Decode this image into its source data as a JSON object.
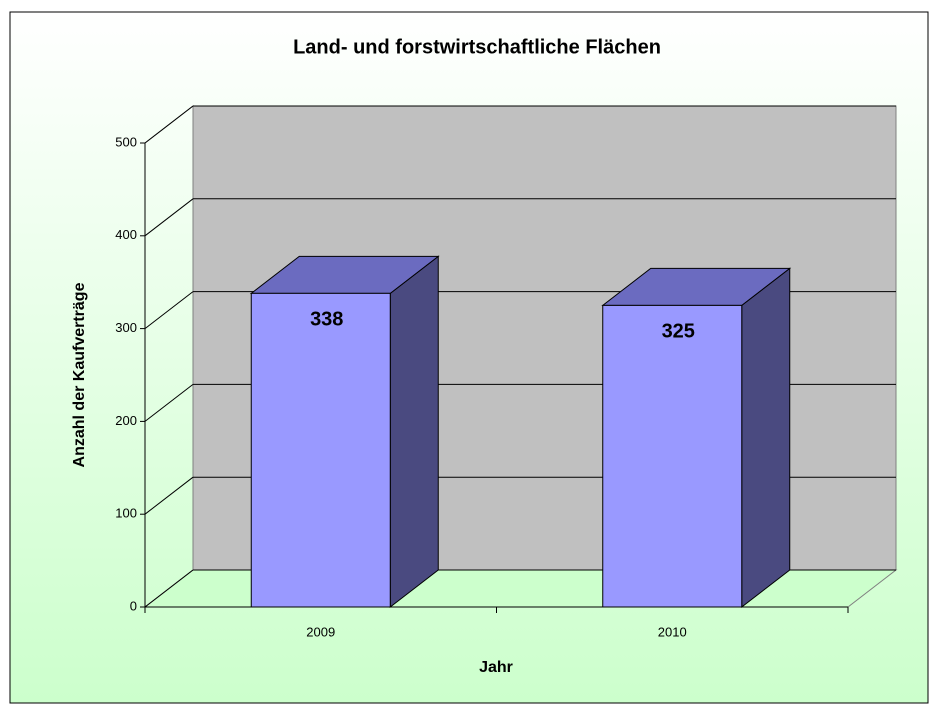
{
  "chart_data": {
    "type": "bar3d",
    "title": "Land- und forstwirtschaftliche Flächen",
    "categories": [
      "2009",
      "2010"
    ],
    "values": [
      338,
      325
    ],
    "color": "#9999ff",
    "xlabel": "Jahr",
    "ylabel": "Anzahl der Kaufverträge",
    "ylim": [
      0,
      500
    ],
    "yticks": [
      0,
      100,
      200,
      300,
      400,
      500
    ],
    "grid": true
  }
}
